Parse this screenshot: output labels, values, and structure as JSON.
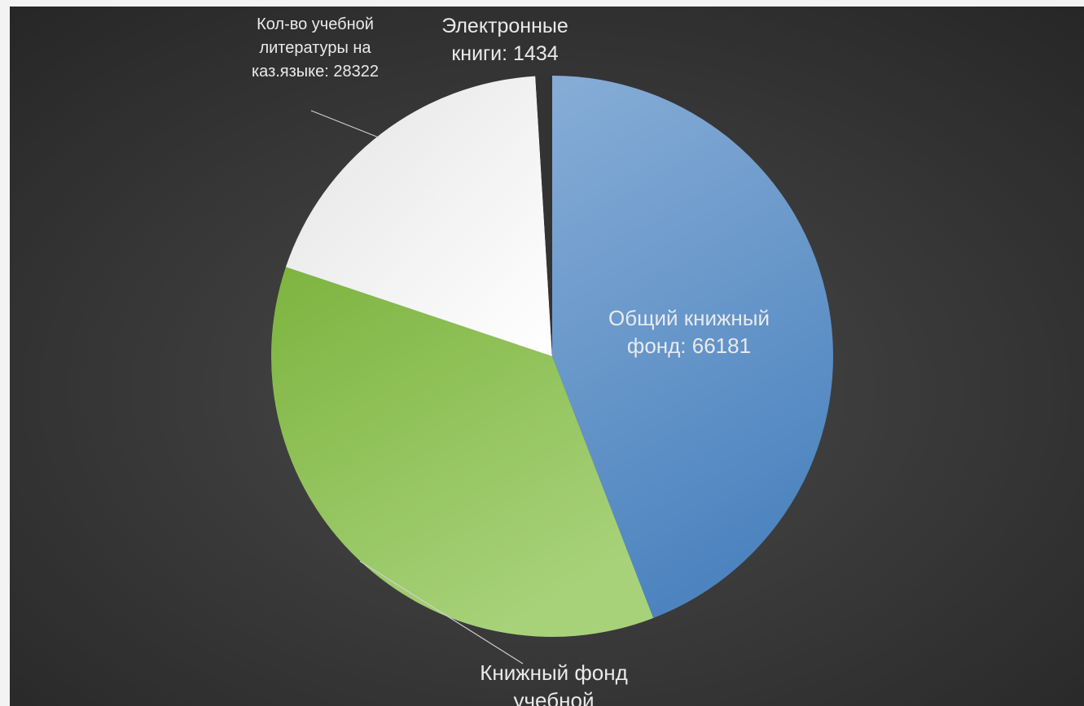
{
  "chart_data": {
    "type": "pie",
    "slices": [
      {
        "name": "Общий книжный фонд",
        "value": 66181,
        "label_lines": [
          "Общий книжный",
          "фонд: 66181"
        ],
        "color": "#6f9fd0"
      },
      {
        "name": "Книжный фонд учебной",
        "value": 54000,
        "label_lines": [
          "Книжный фонд",
          "учебной"
        ],
        "color": "#97c465"
      },
      {
        "name": "Кол-во учебной литературы на каз.языке",
        "value": 28322,
        "label_lines": [
          "Кол-во учебной",
          "литературы на",
          "каз.языке: 28322"
        ],
        "color": "#f7f7f7"
      },
      {
        "name": "Электронные книги",
        "value": 1434,
        "label_lines": [
          "Электронные",
          "книги: 1434"
        ],
        "color": "#333333"
      }
    ],
    "legend": "none",
    "data_labels": "category-and-value"
  }
}
